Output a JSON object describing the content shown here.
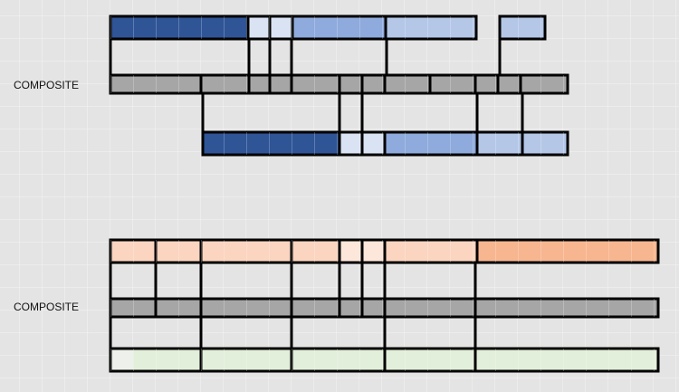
{
  "sections": [
    {
      "label": "COMPOSITE"
    },
    {
      "label": "COMPOSITE"
    }
  ]
}
